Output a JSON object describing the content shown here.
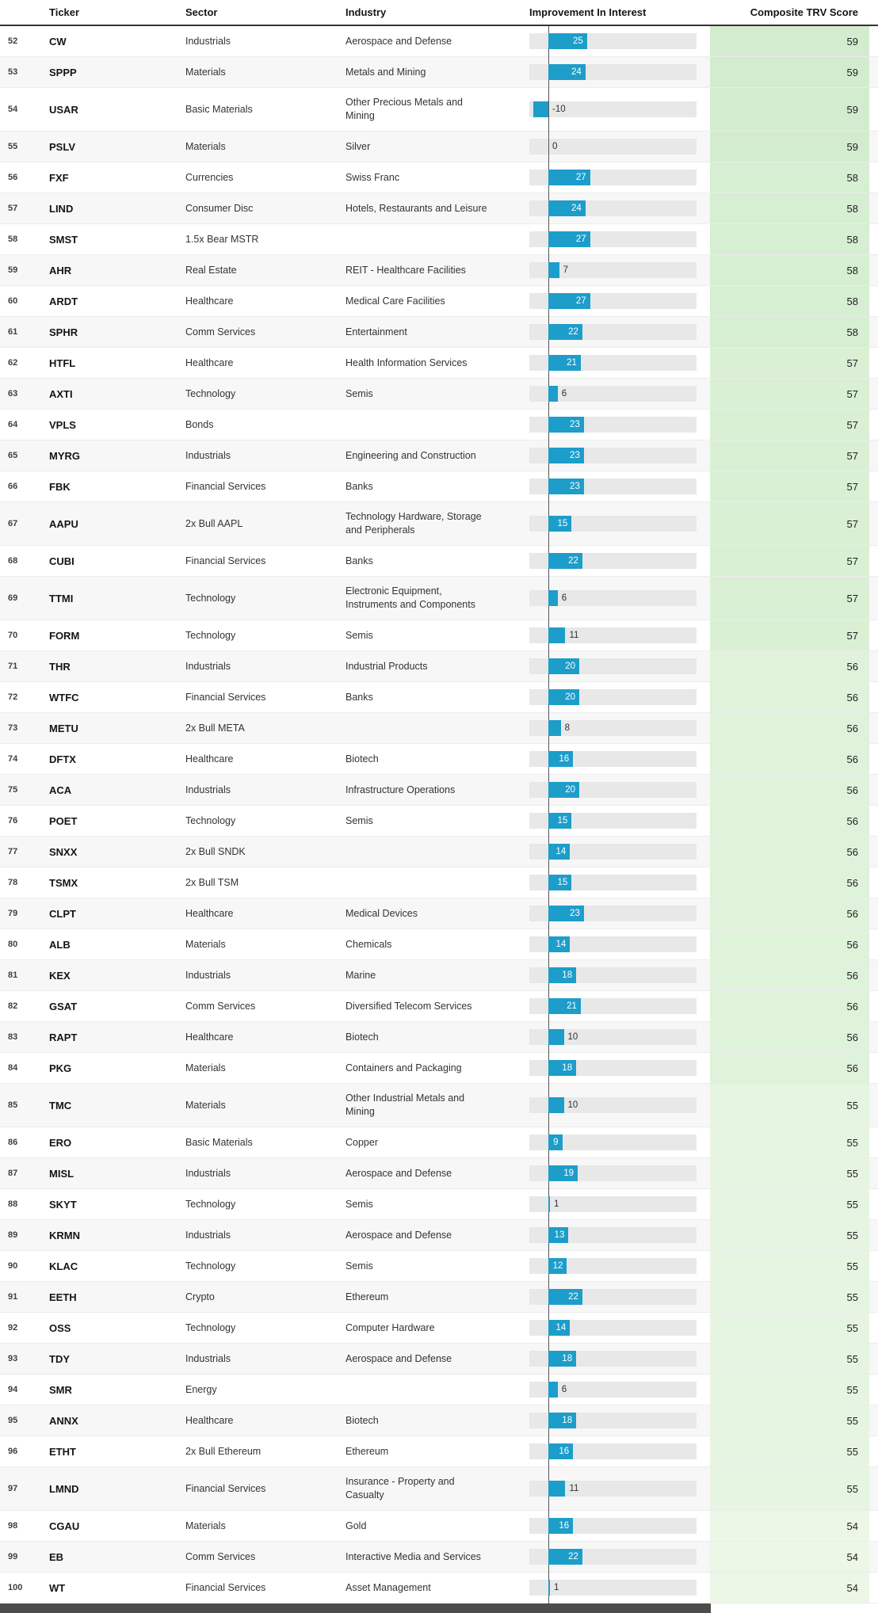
{
  "table": {
    "columns": [
      "Ticker",
      "Sector",
      "Industry",
      "Improvement In Interest",
      "Composite TRV Score"
    ],
    "rows": [
      {
        "rank": 52,
        "ticker": "CW",
        "sector": "Industrials",
        "industry": "Aerospace and Defense",
        "interest": 25,
        "score": 59
      },
      {
        "rank": 53,
        "ticker": "SPPP",
        "sector": "Materials",
        "industry": "Metals and Mining",
        "interest": 24,
        "score": 59
      },
      {
        "rank": 54,
        "ticker": "USAR",
        "sector": "Basic Materials",
        "industry": "Other Precious Metals and\nMining",
        "interest": -10,
        "score": 59
      },
      {
        "rank": 55,
        "ticker": "PSLV",
        "sector": "Materials",
        "industry": "Silver",
        "interest": 0,
        "score": 59
      },
      {
        "rank": 56,
        "ticker": "FXF",
        "sector": "Currencies",
        "industry": "Swiss Franc",
        "interest": 27,
        "score": 58
      },
      {
        "rank": 57,
        "ticker": "LIND",
        "sector": "Consumer Disc",
        "industry": "Hotels, Restaurants and Leisure",
        "interest": 24,
        "score": 58
      },
      {
        "rank": 58,
        "ticker": "SMST",
        "sector": "1.5x Bear MSTR",
        "industry": "",
        "interest": 27,
        "score": 58
      },
      {
        "rank": 59,
        "ticker": "AHR",
        "sector": "Real Estate",
        "industry": "REIT - Healthcare Facilities",
        "interest": 7,
        "score": 58
      },
      {
        "rank": 60,
        "ticker": "ARDT",
        "sector": "Healthcare",
        "industry": "Medical Care Facilities",
        "interest": 27,
        "score": 58
      },
      {
        "rank": 61,
        "ticker": "SPHR",
        "sector": "Comm Services",
        "industry": "Entertainment",
        "interest": 22,
        "score": 58
      },
      {
        "rank": 62,
        "ticker": "HTFL",
        "sector": "Healthcare",
        "industry": "Health Information Services",
        "interest": 21,
        "score": 57
      },
      {
        "rank": 63,
        "ticker": "AXTI",
        "sector": "Technology",
        "industry": "Semis",
        "interest": 6,
        "score": 57
      },
      {
        "rank": 64,
        "ticker": "VPLS",
        "sector": "Bonds",
        "industry": "",
        "interest": 23,
        "score": 57
      },
      {
        "rank": 65,
        "ticker": "MYRG",
        "sector": "Industrials",
        "industry": "Engineering and Construction",
        "interest": 23,
        "score": 57
      },
      {
        "rank": 66,
        "ticker": "FBK",
        "sector": "Financial Services",
        "industry": "Banks",
        "interest": 23,
        "score": 57
      },
      {
        "rank": 67,
        "ticker": "AAPU",
        "sector": "2x Bull AAPL",
        "industry": "Technology Hardware, Storage\nand Peripherals",
        "interest": 15,
        "score": 57
      },
      {
        "rank": 68,
        "ticker": "CUBI",
        "sector": "Financial Services",
        "industry": "Banks",
        "interest": 22,
        "score": 57
      },
      {
        "rank": 69,
        "ticker": "TTMI",
        "sector": "Technology",
        "industry": "Electronic Equipment,\nInstruments and Components",
        "interest": 6,
        "score": 57
      },
      {
        "rank": 70,
        "ticker": "FORM",
        "sector": "Technology",
        "industry": "Semis",
        "interest": 11,
        "score": 57
      },
      {
        "rank": 71,
        "ticker": "THR",
        "sector": "Industrials",
        "industry": "Industrial Products",
        "interest": 20,
        "score": 56
      },
      {
        "rank": 72,
        "ticker": "WTFC",
        "sector": "Financial Services",
        "industry": "Banks",
        "interest": 20,
        "score": 56
      },
      {
        "rank": 73,
        "ticker": "METU",
        "sector": "2x Bull META",
        "industry": "",
        "interest": 8,
        "score": 56
      },
      {
        "rank": 74,
        "ticker": "DFTX",
        "sector": "Healthcare",
        "industry": "Biotech",
        "interest": 16,
        "score": 56
      },
      {
        "rank": 75,
        "ticker": "ACA",
        "sector": "Industrials",
        "industry": "Infrastructure Operations",
        "interest": 20,
        "score": 56
      },
      {
        "rank": 76,
        "ticker": "POET",
        "sector": "Technology",
        "industry": "Semis",
        "interest": 15,
        "score": 56
      },
      {
        "rank": 77,
        "ticker": "SNXX",
        "sector": "2x Bull SNDK",
        "industry": "",
        "interest": 14,
        "score": 56
      },
      {
        "rank": 78,
        "ticker": "TSMX",
        "sector": "2x Bull TSM",
        "industry": "",
        "interest": 15,
        "score": 56
      },
      {
        "rank": 79,
        "ticker": "CLPT",
        "sector": "Healthcare",
        "industry": "Medical Devices",
        "interest": 23,
        "score": 56
      },
      {
        "rank": 80,
        "ticker": "ALB",
        "sector": "Materials",
        "industry": "Chemicals",
        "interest": 14,
        "score": 56
      },
      {
        "rank": 81,
        "ticker": "KEX",
        "sector": "Industrials",
        "industry": "Marine",
        "interest": 18,
        "score": 56
      },
      {
        "rank": 82,
        "ticker": "GSAT",
        "sector": "Comm Services",
        "industry": "Diversified Telecom Services",
        "interest": 21,
        "score": 56
      },
      {
        "rank": 83,
        "ticker": "RAPT",
        "sector": "Healthcare",
        "industry": "Biotech",
        "interest": 10,
        "score": 56
      },
      {
        "rank": 84,
        "ticker": "PKG",
        "sector": "Materials",
        "industry": "Containers and Packaging",
        "interest": 18,
        "score": 56
      },
      {
        "rank": 85,
        "ticker": "TMC",
        "sector": "Materials",
        "industry": "Other Industrial Metals and\nMining",
        "interest": 10,
        "score": 55
      },
      {
        "rank": 86,
        "ticker": "ERO",
        "sector": "Basic Materials",
        "industry": "Copper",
        "interest": 9,
        "score": 55
      },
      {
        "rank": 87,
        "ticker": "MISL",
        "sector": "Industrials",
        "industry": "Aerospace and Defense",
        "interest": 19,
        "score": 55
      },
      {
        "rank": 88,
        "ticker": "SKYT",
        "sector": "Technology",
        "industry": "Semis",
        "interest": 1,
        "score": 55
      },
      {
        "rank": 89,
        "ticker": "KRMN",
        "sector": "Industrials",
        "industry": "Aerospace and Defense",
        "interest": 13,
        "score": 55
      },
      {
        "rank": 90,
        "ticker": "KLAC",
        "sector": "Technology",
        "industry": "Semis",
        "interest": 12,
        "score": 55
      },
      {
        "rank": 91,
        "ticker": "EETH",
        "sector": "Crypto",
        "industry": "Ethereum",
        "interest": 22,
        "score": 55
      },
      {
        "rank": 92,
        "ticker": "OSS",
        "sector": "Technology",
        "industry": "Computer Hardware",
        "interest": 14,
        "score": 55
      },
      {
        "rank": 93,
        "ticker": "TDY",
        "sector": "Industrials",
        "industry": "Aerospace and Defense",
        "interest": 18,
        "score": 55
      },
      {
        "rank": 94,
        "ticker": "SMR",
        "sector": "Energy",
        "industry": "",
        "interest": 6,
        "score": 55
      },
      {
        "rank": 95,
        "ticker": "ANNX",
        "sector": "Healthcare",
        "industry": "Biotech",
        "interest": 18,
        "score": 55
      },
      {
        "rank": 96,
        "ticker": "ETHT",
        "sector": "2x Bull Ethereum",
        "industry": "Ethereum",
        "interest": 16,
        "score": 55
      },
      {
        "rank": 97,
        "ticker": "LMND",
        "sector": "Financial Services",
        "industry": "Insurance - Property and\nCasualty",
        "interest": 11,
        "score": 55
      },
      {
        "rank": 98,
        "ticker": "CGAU",
        "sector": "Materials",
        "industry": "Gold",
        "interest": 16,
        "score": 54
      },
      {
        "rank": 99,
        "ticker": "EB",
        "sector": "Comm Services",
        "industry": "Interactive Media and Services",
        "interest": 22,
        "score": 54
      },
      {
        "rank": 100,
        "ticker": "WT",
        "sector": "Financial Services",
        "industry": "Asset Management",
        "interest": 1,
        "score": 54
      }
    ]
  },
  "colors": {
    "bar_blue": "#1d9dca",
    "track_grey": "#e8e8e8",
    "zero_line": "#555555",
    "stripe": "#f7f7f7",
    "scrollbar_thumb": "#4c4c4c",
    "score_greens": {
      "54": "#ecf7e7",
      "55": "#e6f5e1",
      "56": "#dff2da",
      "57": "#daf0d5",
      "58": "#d6eed2",
      "59": "#d3eccf"
    }
  }
}
